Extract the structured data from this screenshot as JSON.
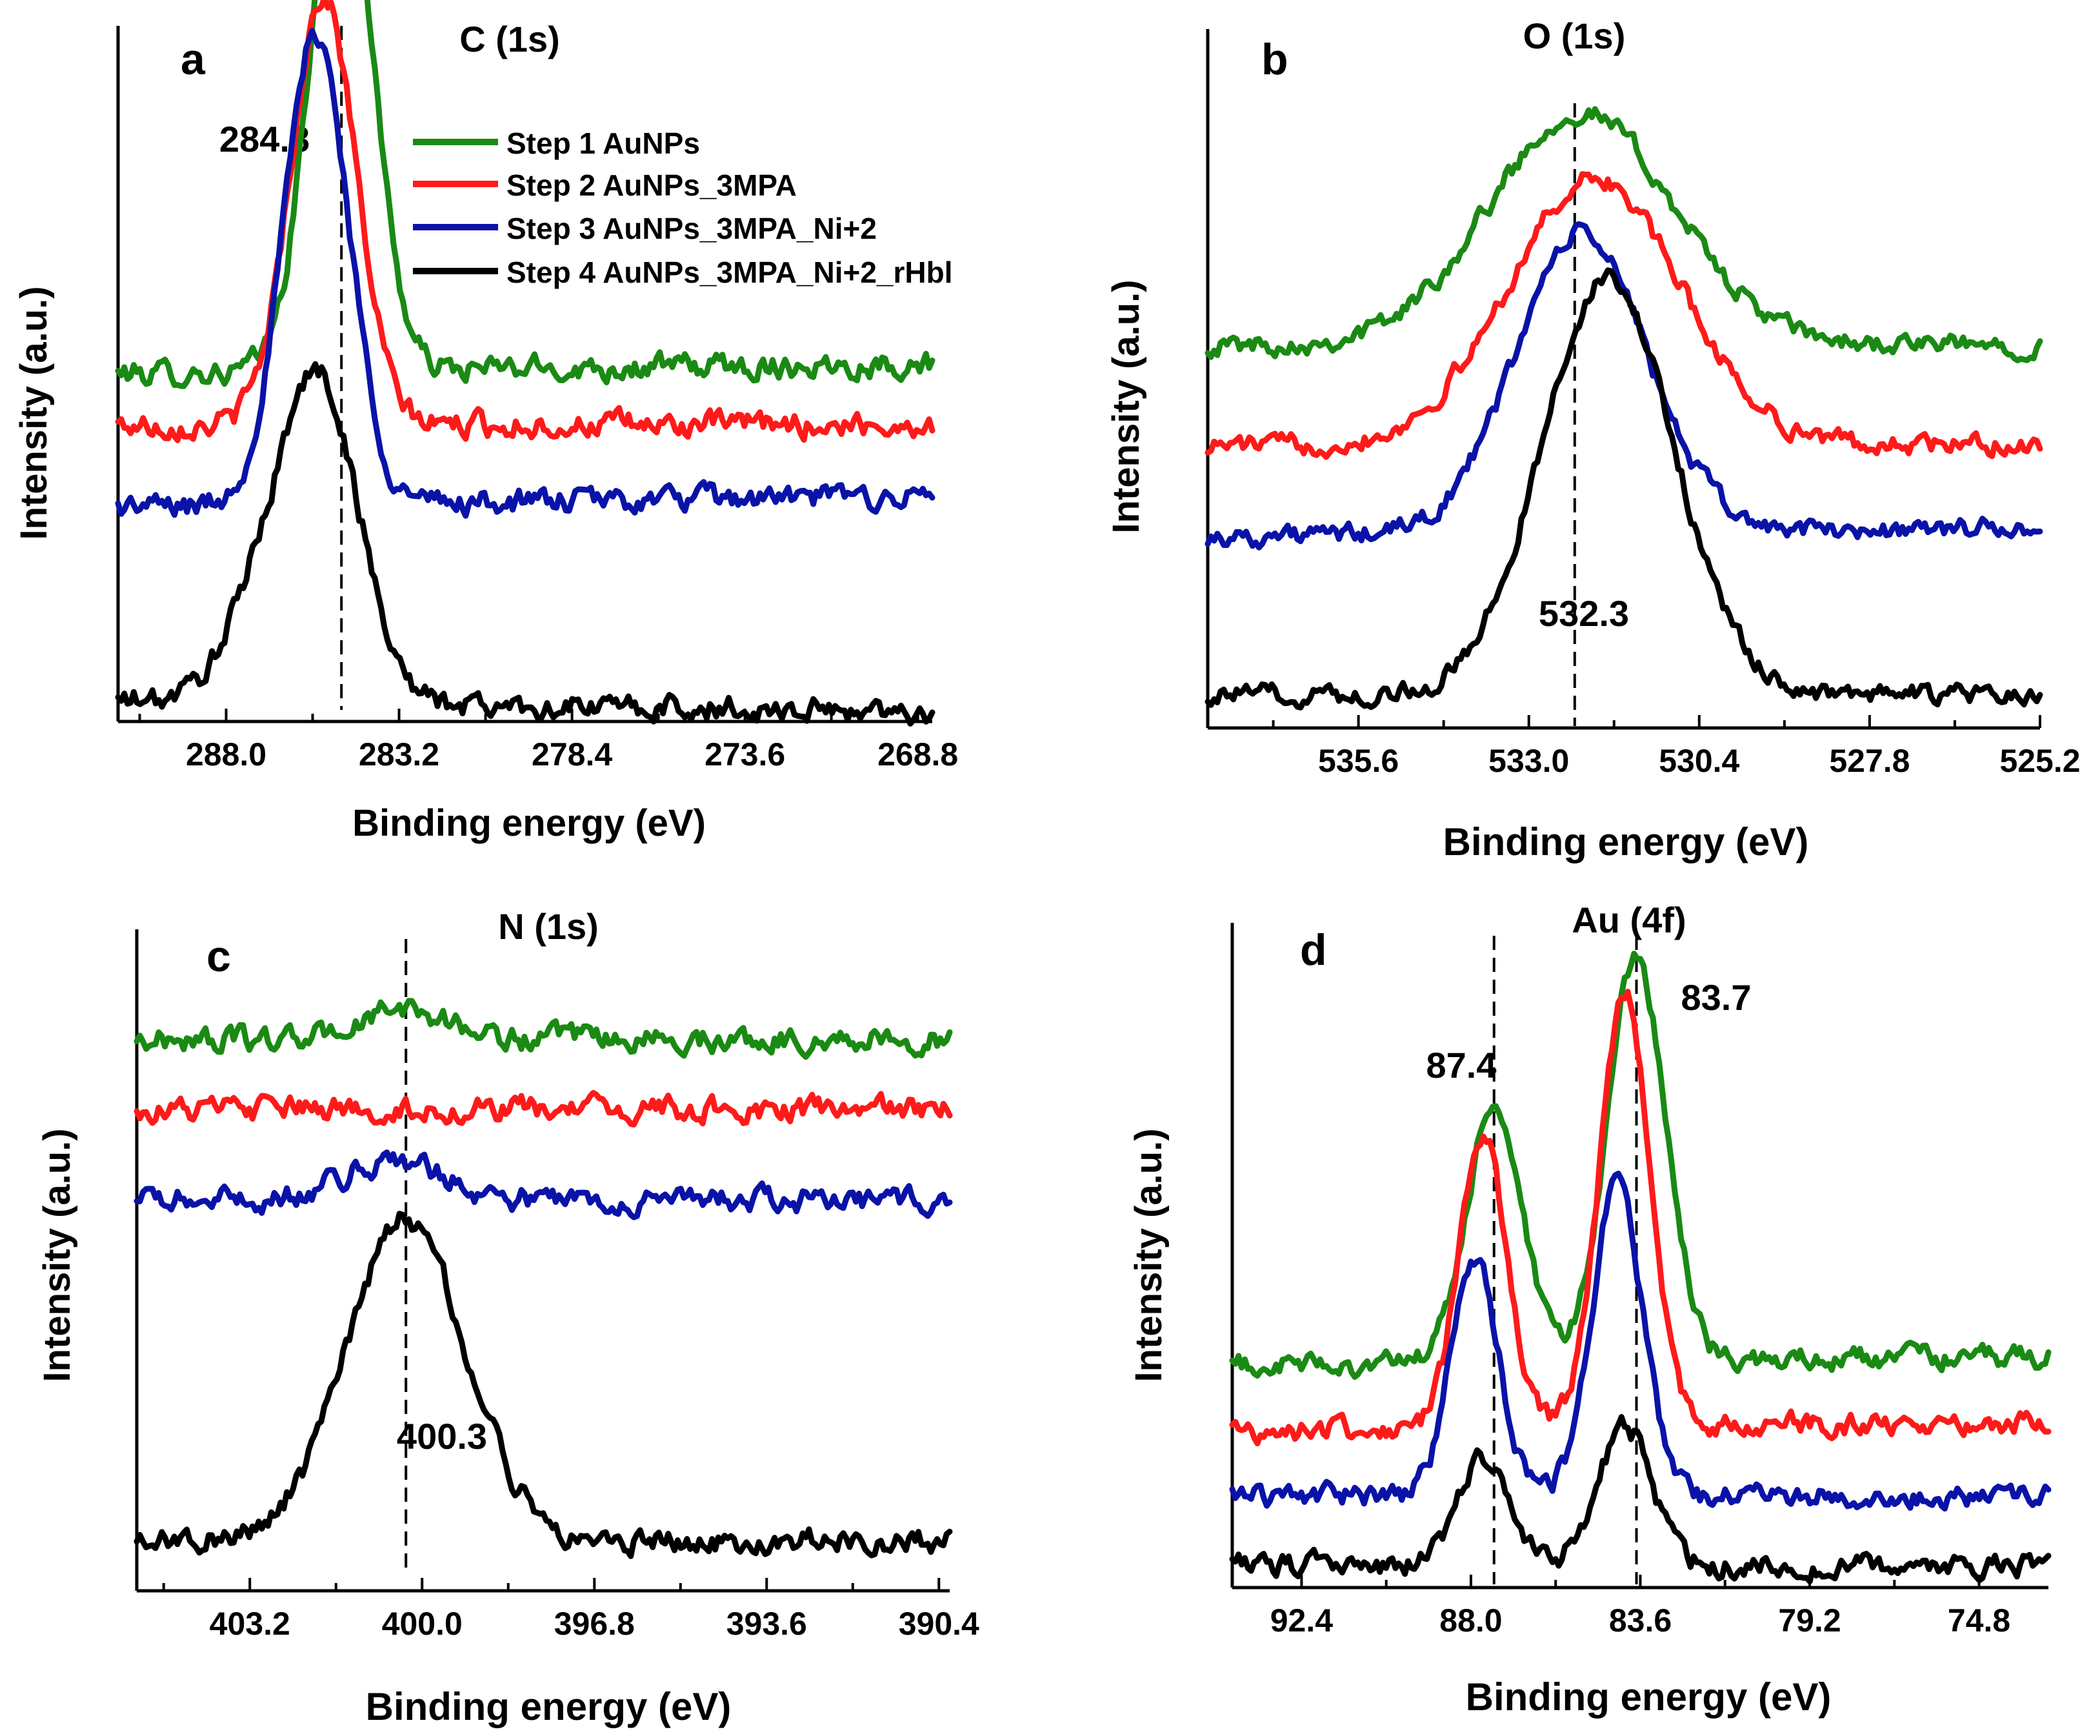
{
  "colors": {
    "step1": "#1a8a14",
    "step2": "#ff1a1a",
    "step3": "#0a13a8",
    "step4": "#000000"
  },
  "legend": [
    {
      "name": "Step 1 AuNPs",
      "color": "#1a8a14"
    },
    {
      "name": "Step 2 AuNPs_3MPA",
      "color": "#ff1a1a"
    },
    {
      "name": "Step 3 AuNPs_3MPA_Ni+2",
      "color": "#0a13a8"
    },
    {
      "name": "Step 4 AuNPs_3MPA_Ni+2_rHbl",
      "color": "#000000"
    }
  ],
  "chart_data": [
    {
      "type": "line",
      "panel": "a",
      "title": "C (1s)",
      "xlabel": "Binding energy (eV)",
      "ylabel": "Intensity (a.u.)",
      "xlim": [
        291.0,
        268.4
      ],
      "xticks": [
        "288.0",
        "283.2",
        "278.4",
        "273.6",
        "268.8"
      ],
      "reference_lines": [
        {
          "x": 284.8,
          "label": "284.8"
        }
      ],
      "series": [
        {
          "name": "Step 1 AuNPs",
          "peaks": [
            {
              "center": 284.8,
              "height": 2.65,
              "width": 0.85
            }
          ],
          "baseline": 1.7,
          "baseline_end": 1.75
        },
        {
          "name": "Step 2 AuNPs_3MPA",
          "peaks": [
            {
              "center": 285.3,
              "height": 2.1,
              "width": 0.9
            }
          ],
          "baseline": 1.45,
          "baseline_end": 1.45
        },
        {
          "name": "Step 3 AuNPs_3MPA_Ni+2",
          "peaks": [
            {
              "center": 285.5,
              "height": 2.3,
              "width": 0.9
            }
          ],
          "baseline": 1.05,
          "baseline_end": 1.1
        },
        {
          "name": "Step 4 AuNPs_3MPA_Ni+2_rHbl",
          "peaks": [
            {
              "center": 285.4,
              "height": 1.55,
              "width": 1.1
            },
            {
              "center": 287.2,
              "height": 0.35,
              "width": 1.0
            }
          ],
          "baseline": 0.1,
          "baseline_end": 0.05
        }
      ]
    },
    {
      "type": "line",
      "panel": "b",
      "title": "O (1s)",
      "xlabel": "Binding energy (eV)",
      "ylabel": "Intensity (a.u.)",
      "xlim": [
        537.9,
        525.2
      ],
      "xticks": [
        "535.6",
        "533.0",
        "530.4",
        "527.8",
        "525.2"
      ],
      "reference_lines": [
        {
          "x": 532.3,
          "label": "532.3"
        }
      ],
      "series": [
        {
          "name": "Step 1 AuNPs",
          "peaks": [
            {
              "center": 532.2,
              "height": 1.4,
              "width": 1.4
            }
          ],
          "baseline": 2.3,
          "baseline_end": 2.3
        },
        {
          "name": "Step 2 AuNPs_3MPA",
          "peaks": [
            {
              "center": 532.0,
              "height": 1.6,
              "width": 1.3
            }
          ],
          "baseline": 1.7,
          "baseline_end": 1.7
        },
        {
          "name": "Step 3 AuNPs_3MPA_Ni+2",
          "peaks": [
            {
              "center": 532.2,
              "height": 1.8,
              "width": 1.0
            }
          ],
          "baseline": 1.15,
          "baseline_end": 1.2
        },
        {
          "name": "Step 4 AuNPs_3MPA_Ni+2_rHbl",
          "peaks": [
            {
              "center": 531.8,
              "height": 2.5,
              "width": 1.0
            }
          ],
          "baseline": 0.2,
          "baseline_end": 0.2
        }
      ]
    },
    {
      "type": "line",
      "panel": "c",
      "title": "N (1s)",
      "xlabel": "Binding energy (eV)",
      "ylabel": "Intensity (a.u.)",
      "xlim": [
        405.3,
        390.2
      ],
      "xticks": [
        "403.2",
        "400.0",
        "396.8",
        "393.6",
        "390.4"
      ],
      "reference_lines": [
        {
          "x": 400.3,
          "label": "400.3"
        }
      ],
      "series": [
        {
          "name": "Step 1 AuNPs",
          "peaks": [
            {
              "center": 400.3,
              "height": 0.15,
              "width": 0.8
            }
          ],
          "baseline": 2.75,
          "baseline_end": 2.75
        },
        {
          "name": "Step 2 AuNPs_3MPA",
          "peaks": [],
          "baseline": 2.4,
          "baseline_end": 2.4
        },
        {
          "name": "Step 3 AuNPs_3MPA_Ni+2",
          "peaks": [
            {
              "center": 400.5,
              "height": 0.2,
              "width": 0.9
            }
          ],
          "baseline": 1.95,
          "baseline_end": 1.95
        },
        {
          "name": "Step 4 AuNPs_3MPA_Ni+2_rHbl",
          "peaks": [
            {
              "center": 400.3,
              "height": 1.6,
              "width": 1.1
            }
          ],
          "baseline": 0.25,
          "baseline_end": 0.25
        }
      ]
    },
    {
      "type": "line",
      "panel": "d",
      "title": "Au (4f)",
      "xlabel": "Binding energy (eV)",
      "ylabel": "Intensity (a.u.)",
      "xlim": [
        94.2,
        73.0
      ],
      "xticks": [
        "92.4",
        "88.0",
        "83.6",
        "79.2",
        "74.8"
      ],
      "reference_lines": [
        {
          "x": 87.4,
          "label": "87.4"
        },
        {
          "x": 83.7,
          "label": "83.7"
        }
      ],
      "series": [
        {
          "name": "Step 1 AuNPs",
          "peaks": [
            {
              "center": 87.4,
              "height": 1.4,
              "width": 0.7
            },
            {
              "center": 83.7,
              "height": 2.2,
              "width": 0.75
            }
          ],
          "baseline": 1.2,
          "baseline_end": 1.25
        },
        {
          "name": "Step 2 AuNPs_3MPA",
          "peaks": [
            {
              "center": 87.7,
              "height": 1.6,
              "width": 0.6
            },
            {
              "center": 84.0,
              "height": 2.35,
              "width": 0.65
            }
          ],
          "baseline": 0.85,
          "baseline_end": 0.9
        },
        {
          "name": "Step 3 AuNPs_3MPA_Ni+2",
          "peaks": [
            {
              "center": 87.9,
              "height": 1.3,
              "width": 0.6
            },
            {
              "center": 84.2,
              "height": 1.7,
              "width": 0.65
            }
          ],
          "baseline": 0.5,
          "baseline_end": 0.5
        },
        {
          "name": "Step 4 AuNPs_3MPA_Ni+2_rHbl",
          "peaks": [
            {
              "center": 87.7,
              "height": 0.6,
              "width": 0.65
            },
            {
              "center": 84.0,
              "height": 0.75,
              "width": 0.7
            }
          ],
          "baseline": 0.12,
          "baseline_end": 0.12
        }
      ]
    }
  ]
}
